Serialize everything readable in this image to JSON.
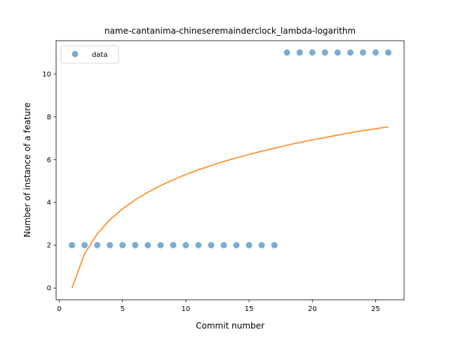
{
  "chart_data": {
    "type": "scatter",
    "title": "name-cantanima-chineseremainderclock_lambda-logarithm",
    "xlabel": "Commit number",
    "ylabel": "Number of instance of a feature",
    "xlim": [
      -0.25,
      27.25
    ],
    "ylim": [
      -0.55,
      11.55
    ],
    "xticks": [
      0,
      5,
      10,
      15,
      20,
      25
    ],
    "yticks": [
      0,
      2,
      4,
      6,
      8,
      10
    ],
    "grid": false,
    "legend": {
      "placement": "top-left",
      "entries": [
        "data"
      ]
    },
    "series": [
      {
        "name": "data",
        "kind": "scatter",
        "color": "#1f77b4",
        "x": [
          1,
          2,
          3,
          4,
          5,
          6,
          7,
          8,
          9,
          10,
          11,
          12,
          13,
          14,
          15,
          16,
          17,
          18,
          19,
          20,
          21,
          22,
          23,
          24,
          25,
          26
        ],
        "y": [
          2,
          2,
          2,
          2,
          2,
          2,
          2,
          2,
          2,
          2,
          2,
          2,
          2,
          2,
          2,
          2,
          2,
          11,
          11,
          11,
          11,
          11,
          11,
          11,
          11,
          11
        ]
      },
      {
        "kind": "line",
        "color": "#ff7f0e",
        "x": [
          1,
          2,
          3,
          4,
          5,
          6,
          7,
          8,
          9,
          10,
          11,
          12,
          13,
          14,
          15,
          16,
          17,
          18,
          19,
          20,
          21,
          22,
          23,
          24,
          25,
          26
        ],
        "y": [
          0,
          1.6,
          2.53,
          3.19,
          3.7,
          4.12,
          4.47,
          4.78,
          5.05,
          5.3,
          5.52,
          5.72,
          5.91,
          6.08,
          6.24,
          6.39,
          6.53,
          6.67,
          6.8,
          6.92,
          7.03,
          7.14,
          7.25,
          7.35,
          7.44,
          7.53
        ]
      }
    ]
  }
}
